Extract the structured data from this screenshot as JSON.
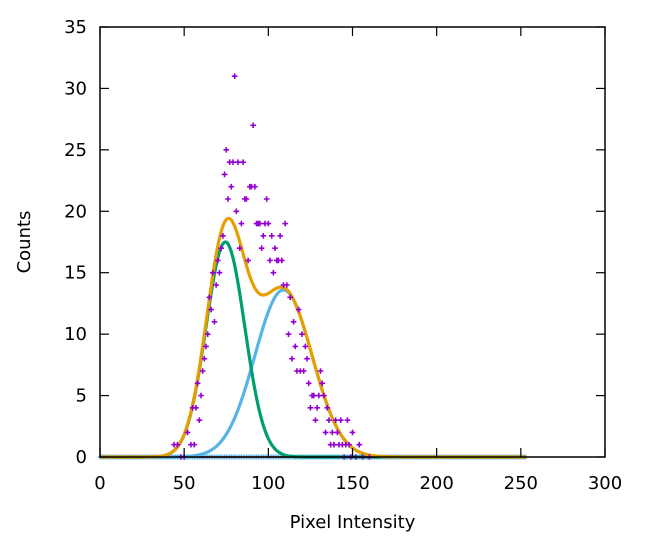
{
  "chart_data": {
    "type": "scatter",
    "title": "",
    "xlabel": "Pixel Intensity",
    "ylabel": "Counts",
    "xlim": [
      0,
      300
    ],
    "ylim": [
      0,
      35
    ],
    "xticks": [
      0,
      50,
      100,
      150,
      200,
      250,
      300
    ],
    "yticks": [
      0,
      5,
      10,
      15,
      20,
      25,
      30,
      35
    ],
    "x_tick_labels": [
      "0",
      "50",
      "100",
      "150",
      "200",
      "250",
      "300"
    ],
    "y_tick_labels": [
      "0",
      "5",
      "10",
      "15",
      "20",
      "25",
      "30",
      "35"
    ],
    "grid": false,
    "legend": "none",
    "scatter_points": [
      [
        44,
        1
      ],
      [
        46,
        1
      ],
      [
        48,
        0
      ],
      [
        50,
        0
      ],
      [
        52,
        2
      ],
      [
        54,
        1
      ],
      [
        55,
        4
      ],
      [
        56,
        1
      ],
      [
        57,
        4
      ],
      [
        58,
        6
      ],
      [
        59,
        3
      ],
      [
        60,
        5
      ],
      [
        61,
        7
      ],
      [
        62,
        8
      ],
      [
        63,
        9
      ],
      [
        64,
        10
      ],
      [
        65,
        13
      ],
      [
        66,
        12
      ],
      [
        67,
        15
      ],
      [
        68,
        11
      ],
      [
        69,
        14
      ],
      [
        70,
        16
      ],
      [
        71,
        15
      ],
      [
        72,
        17
      ],
      [
        73,
        18
      ],
      [
        74,
        23
      ],
      [
        75,
        25
      ],
      [
        76,
        21
      ],
      [
        77,
        24
      ],
      [
        78,
        22
      ],
      [
        79,
        24
      ],
      [
        80,
        31
      ],
      [
        81,
        20
      ],
      [
        82,
        24
      ],
      [
        83,
        17
      ],
      [
        84,
        19
      ],
      [
        85,
        24
      ],
      [
        86,
        21
      ],
      [
        87,
        21
      ],
      [
        88,
        16
      ],
      [
        89,
        22
      ],
      [
        90,
        22
      ],
      [
        91,
        27
      ],
      [
        92,
        22
      ],
      [
        93,
        19
      ],
      [
        94,
        19
      ],
      [
        95,
        19
      ],
      [
        96,
        17
      ],
      [
        97,
        18
      ],
      [
        98,
        19
      ],
      [
        99,
        21
      ],
      [
        100,
        19
      ],
      [
        101,
        16
      ],
      [
        102,
        18
      ],
      [
        103,
        15
      ],
      [
        104,
        17
      ],
      [
        105,
        16
      ],
      [
        106,
        16
      ],
      [
        107,
        18
      ],
      [
        108,
        16
      ],
      [
        109,
        14
      ],
      [
        110,
        19
      ],
      [
        111,
        14
      ],
      [
        112,
        10
      ],
      [
        113,
        13
      ],
      [
        114,
        8
      ],
      [
        115,
        11
      ],
      [
        116,
        9
      ],
      [
        117,
        7
      ],
      [
        118,
        12
      ],
      [
        119,
        7
      ],
      [
        120,
        10
      ],
      [
        121,
        7
      ],
      [
        122,
        9
      ],
      [
        123,
        8
      ],
      [
        124,
        6
      ],
      [
        125,
        4
      ],
      [
        126,
        5
      ],
      [
        127,
        5
      ],
      [
        128,
        3
      ],
      [
        129,
        4
      ],
      [
        130,
        5
      ],
      [
        131,
        7
      ],
      [
        132,
        6
      ],
      [
        133,
        5
      ],
      [
        134,
        2
      ],
      [
        135,
        4
      ],
      [
        136,
        3
      ],
      [
        137,
        1
      ],
      [
        138,
        2
      ],
      [
        139,
        1
      ],
      [
        140,
        3
      ],
      [
        141,
        2
      ],
      [
        142,
        1
      ],
      [
        143,
        3
      ],
      [
        144,
        1
      ],
      [
        145,
        0
      ],
      [
        146,
        1
      ],
      [
        147,
        3
      ],
      [
        148,
        1
      ],
      [
        149,
        0
      ],
      [
        150,
        2
      ],
      [
        152,
        0
      ],
      [
        154,
        1
      ],
      [
        156,
        0
      ],
      [
        160,
        0
      ]
    ],
    "gaussian_series": [
      {
        "label": "",
        "amplitude": 17.5,
        "mean": 74.5,
        "sigma": 11.5,
        "color": "#009e73"
      },
      {
        "label": "",
        "amplitude": 13.6,
        "mean": 109,
        "sigma": 17,
        "color": "#56b4e9"
      },
      {
        "label": "",
        "type": "sum",
        "color": "#e69f00"
      }
    ],
    "zero_series_range": [
      0,
      253
    ],
    "colors": {
      "points": "#9400d3",
      "zero_line": "#e51e10",
      "zero_markers": "#56b4e9"
    }
  }
}
